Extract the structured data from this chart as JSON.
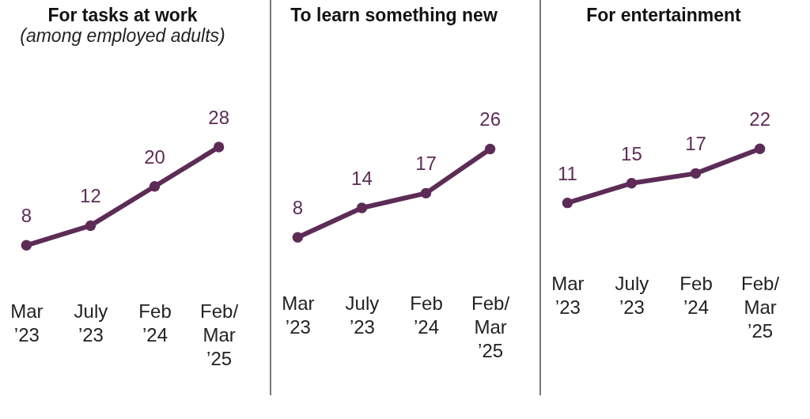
{
  "chart_data": [
    {
      "type": "line",
      "title": "For tasks at work",
      "subtitle": "(among employed adults)",
      "categories": [
        "Mar ’23",
        "July ’23",
        "Feb ’24",
        "Feb/ Mar ’25"
      ],
      "series": [
        {
          "color": "#5c2c57",
          "values": [
            8,
            12,
            20,
            28
          ]
        }
      ],
      "data_labels": true,
      "marker": "circle",
      "line_style": "solid"
    },
    {
      "type": "line",
      "title": "To learn something new",
      "categories": [
        "Mar ’23",
        "July ’23",
        "Feb ’24",
        "Feb/ Mar ’25"
      ],
      "series": [
        {
          "color": "#5c2c57",
          "values": [
            8,
            14,
            17,
            26
          ]
        }
      ],
      "data_labels": true,
      "marker": "circle",
      "line_style": "solid"
    },
    {
      "type": "line",
      "title": "For entertainment",
      "categories": [
        "Mar ’23",
        "July ’23",
        "Feb ’24",
        "Feb/ Mar ’25"
      ],
      "series": [
        {
          "color": "#5c2c57",
          "values": [
            11,
            15,
            17,
            22
          ]
        }
      ],
      "data_labels": true,
      "marker": "circle",
      "line_style": "solid"
    }
  ]
}
